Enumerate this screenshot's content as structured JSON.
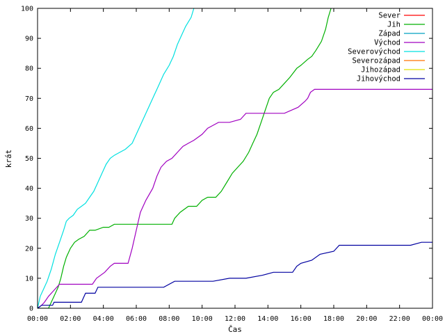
{
  "chart_data": {
    "type": "line",
    "xlabel": "Čas",
    "ylabel": "krát",
    "xlim": [
      0,
      1440
    ],
    "ylim": [
      0,
      100
    ],
    "x_unit": "minutes since 00:00",
    "xticks": [
      {
        "v": 0,
        "label": "00:00"
      },
      {
        "v": 120,
        "label": "02:00"
      },
      {
        "v": 240,
        "label": "04:00"
      },
      {
        "v": 360,
        "label": "06:00"
      },
      {
        "v": 480,
        "label": "08:00"
      },
      {
        "v": 600,
        "label": "10:00"
      },
      {
        "v": 720,
        "label": "12:00"
      },
      {
        "v": 840,
        "label": "14:00"
      },
      {
        "v": 960,
        "label": "16:00"
      },
      {
        "v": 1080,
        "label": "18:00"
      },
      {
        "v": 1200,
        "label": "20:00"
      },
      {
        "v": 1320,
        "label": "22:00"
      },
      {
        "v": 1440,
        "label": "00:00"
      }
    ],
    "yticks": [
      0,
      10,
      20,
      30,
      40,
      50,
      60,
      70,
      80,
      90,
      100
    ],
    "grid": false,
    "legend_position": "top-right",
    "series": [
      {
        "name": "Sever",
        "color": "#ff0000",
        "points": []
      },
      {
        "name": "Jih",
        "color": "#00b000",
        "points": [
          [
            0,
            0
          ],
          [
            40,
            0
          ],
          [
            50,
            2
          ],
          [
            60,
            4
          ],
          [
            75,
            7
          ],
          [
            85,
            10
          ],
          [
            95,
            14
          ],
          [
            105,
            17
          ],
          [
            120,
            20
          ],
          [
            135,
            22
          ],
          [
            150,
            23
          ],
          [
            170,
            24
          ],
          [
            190,
            26
          ],
          [
            210,
            26
          ],
          [
            240,
            27
          ],
          [
            260,
            27
          ],
          [
            280,
            28
          ],
          [
            330,
            28
          ],
          [
            440,
            28
          ],
          [
            490,
            28
          ],
          [
            500,
            30
          ],
          [
            520,
            32
          ],
          [
            550,
            34
          ],
          [
            580,
            34
          ],
          [
            600,
            36
          ],
          [
            620,
            37
          ],
          [
            650,
            37
          ],
          [
            670,
            39
          ],
          [
            690,
            42
          ],
          [
            710,
            45
          ],
          [
            730,
            47
          ],
          [
            750,
            49
          ],
          [
            770,
            52
          ],
          [
            785,
            55
          ],
          [
            800,
            58
          ],
          [
            815,
            62
          ],
          [
            830,
            66
          ],
          [
            845,
            70
          ],
          [
            860,
            72
          ],
          [
            880,
            73
          ],
          [
            900,
            75
          ],
          [
            920,
            77
          ],
          [
            945,
            80
          ],
          [
            960,
            81
          ],
          [
            985,
            83
          ],
          [
            1000,
            84
          ],
          [
            1015,
            86
          ],
          [
            1035,
            89
          ],
          [
            1050,
            93
          ],
          [
            1060,
            97
          ],
          [
            1070,
            100
          ]
        ]
      },
      {
        "name": "Západ",
        "color": "#00a0c0",
        "points": []
      },
      {
        "name": "Východ",
        "color": "#a000c0",
        "points": [
          [
            0,
            0
          ],
          [
            15,
            1
          ],
          [
            25,
            2
          ],
          [
            40,
            4
          ],
          [
            60,
            6
          ],
          [
            80,
            8
          ],
          [
            110,
            8
          ],
          [
            160,
            8
          ],
          [
            200,
            8
          ],
          [
            215,
            10
          ],
          [
            245,
            12
          ],
          [
            265,
            14
          ],
          [
            280,
            15
          ],
          [
            300,
            15
          ],
          [
            330,
            15
          ],
          [
            345,
            20
          ],
          [
            360,
            26
          ],
          [
            375,
            32
          ],
          [
            395,
            36
          ],
          [
            420,
            40
          ],
          [
            435,
            44
          ],
          [
            450,
            47
          ],
          [
            470,
            49
          ],
          [
            490,
            50
          ],
          [
            510,
            52
          ],
          [
            530,
            54
          ],
          [
            550,
            55
          ],
          [
            570,
            56
          ],
          [
            600,
            58
          ],
          [
            620,
            60
          ],
          [
            640,
            61
          ],
          [
            660,
            62
          ],
          [
            700,
            62
          ],
          [
            740,
            63
          ],
          [
            760,
            65
          ],
          [
            800,
            65
          ],
          [
            860,
            65
          ],
          [
            900,
            65
          ],
          [
            950,
            67
          ],
          [
            975,
            69
          ],
          [
            985,
            70
          ],
          [
            995,
            72
          ],
          [
            1010,
            73
          ],
          [
            1100,
            73
          ],
          [
            1200,
            73
          ],
          [
            1440,
            73
          ]
        ]
      },
      {
        "name": "Severovýchod",
        "color": "#00e0e0",
        "points": [
          [
            0,
            0
          ],
          [
            10,
            4
          ],
          [
            20,
            6
          ],
          [
            35,
            9
          ],
          [
            50,
            13
          ],
          [
            65,
            18
          ],
          [
            80,
            22
          ],
          [
            95,
            26
          ],
          [
            105,
            29
          ],
          [
            115,
            30
          ],
          [
            130,
            31
          ],
          [
            145,
            33
          ],
          [
            160,
            34
          ],
          [
            175,
            35
          ],
          [
            190,
            37
          ],
          [
            205,
            39
          ],
          [
            220,
            42
          ],
          [
            235,
            45
          ],
          [
            250,
            48
          ],
          [
            265,
            50
          ],
          [
            280,
            51
          ],
          [
            300,
            52
          ],
          [
            320,
            53
          ],
          [
            345,
            55
          ],
          [
            360,
            58
          ],
          [
            380,
            62
          ],
          [
            400,
            66
          ],
          [
            420,
            70
          ],
          [
            440,
            74
          ],
          [
            460,
            78
          ],
          [
            480,
            81
          ],
          [
            495,
            84
          ],
          [
            510,
            88
          ],
          [
            525,
            91
          ],
          [
            540,
            94
          ],
          [
            560,
            97
          ],
          [
            570,
            100
          ]
        ]
      },
      {
        "name": "Severozápad",
        "color": "#ff7000",
        "points": []
      },
      {
        "name": "Jihozápad",
        "color": "#e0e000",
        "points": []
      },
      {
        "name": "Jihovýchod",
        "color": "#0000a0",
        "points": [
          [
            0,
            0
          ],
          [
            15,
            1
          ],
          [
            55,
            1
          ],
          [
            60,
            2
          ],
          [
            75,
            2
          ],
          [
            95,
            2
          ],
          [
            130,
            2
          ],
          [
            160,
            2
          ],
          [
            175,
            5
          ],
          [
            210,
            5
          ],
          [
            220,
            7
          ],
          [
            300,
            7
          ],
          [
            460,
            7
          ],
          [
            500,
            9
          ],
          [
            640,
            9
          ],
          [
            700,
            10
          ],
          [
            760,
            10
          ],
          [
            820,
            11
          ],
          [
            860,
            12
          ],
          [
            930,
            12
          ],
          [
            945,
            14
          ],
          [
            960,
            15
          ],
          [
            1000,
            16
          ],
          [
            1030,
            18
          ],
          [
            1080,
            19
          ],
          [
            1100,
            21
          ],
          [
            1330,
            21
          ],
          [
            1360,
            21
          ],
          [
            1400,
            22
          ],
          [
            1440,
            22
          ]
        ]
      }
    ]
  }
}
